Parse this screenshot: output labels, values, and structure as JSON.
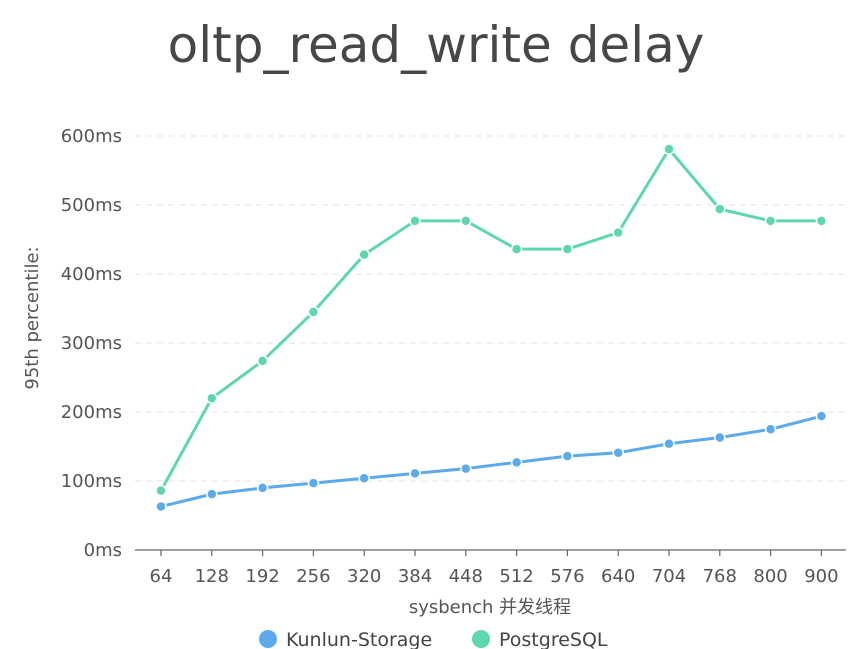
{
  "chart_data": {
    "type": "line",
    "title": "oltp_read_write delay",
    "xlabel": "sysbench 并发线程",
    "ylabel": "95th percentile:",
    "categories": [
      "64",
      "128",
      "192",
      "256",
      "320",
      "384",
      "448",
      "512",
      "576",
      "640",
      "704",
      "768",
      "800",
      "900"
    ],
    "y_ticks": [
      "0ms",
      "100ms",
      "200ms",
      "300ms",
      "400ms",
      "500ms",
      "600ms"
    ],
    "ylim": [
      0,
      600
    ],
    "y_unit": "ms",
    "grid": true,
    "legend_position": "bottom",
    "series": [
      {
        "name": "Kunlun-Storage",
        "color": "#5aaaec",
        "values": [
          63,
          81,
          90,
          97,
          104,
          111,
          118,
          127,
          136,
          141,
          154,
          163,
          175,
          194
        ]
      },
      {
        "name": "PostgreSQL",
        "color": "#5ed6ae",
        "values": [
          86,
          220,
          274,
          345,
          428,
          477,
          477,
          436,
          436,
          460,
          581,
          494,
          477,
          477
        ]
      }
    ]
  }
}
